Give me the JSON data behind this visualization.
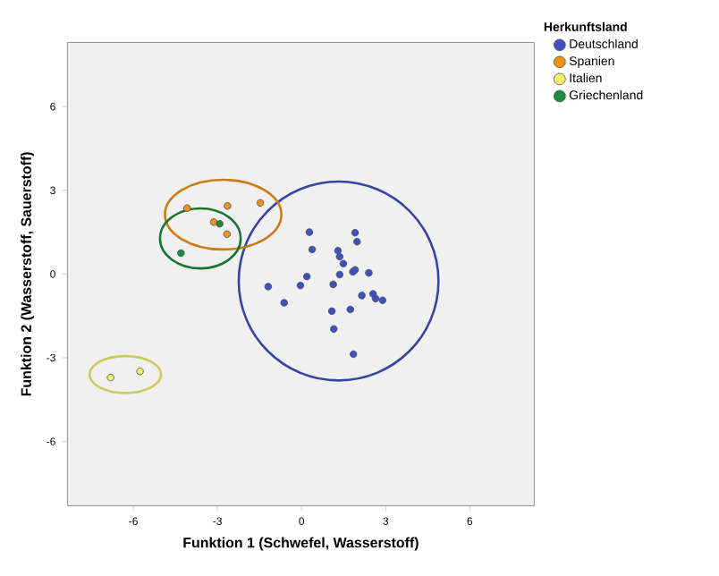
{
  "chart_data": {
    "type": "scatter",
    "xlabel": "Funktion 1 (Schwefel, Wasserstoff)",
    "ylabel": "Funktion 2 (Wasserstoff, Sauerstoff)",
    "legend_title": "Herkunftsland",
    "legend": "top right",
    "marker": "circle",
    "grid": false,
    "xlim": [
      -8.35,
      8.3
    ],
    "ylim": [
      -8.3,
      8.3
    ],
    "xticks": [
      -6,
      -3,
      0,
      3,
      6
    ],
    "yticks": [
      -6,
      -3,
      0,
      3,
      6
    ],
    "series": [
      {
        "name": "Deutschland",
        "color": "#3f51c0",
        "x": [
          0.28,
          1.91,
          1.98,
          0.38,
          1.3,
          1.36,
          1.49,
          -1.19,
          0.19,
          -0.04,
          -0.62,
          1.36,
          1.13,
          1.83,
          1.91,
          2.4,
          2.15,
          2.55,
          2.64,
          2.89,
          1.74,
          1.08,
          1.15,
          1.85
        ],
        "values": [
          1.5,
          1.48,
          1.16,
          0.88,
          0.84,
          0.62,
          0.37,
          -0.45,
          -0.09,
          -0.41,
          -1.03,
          -0.02,
          -0.37,
          0.08,
          0.15,
          0.04,
          -0.77,
          -0.71,
          -0.88,
          -0.94,
          -1.27,
          -1.33,
          -1.97,
          -2.87
        ]
      },
      {
        "name": "Spanien",
        "color": "#f0921a",
        "x": [
          -4.08,
          -2.64,
          -1.47,
          -3.13,
          -2.66
        ],
        "values": [
          2.36,
          2.44,
          2.55,
          1.86,
          1.43
        ]
      },
      {
        "name": "Italien",
        "color": "#f2ee6e",
        "x": [
          -6.81,
          -5.76
        ],
        "values": [
          -3.71,
          -3.49
        ]
      },
      {
        "name": "Griechenland",
        "color": "#1f8a3c",
        "x": [
          -4.3,
          -2.92
        ],
        "values": [
          0.75,
          1.8
        ]
      }
    ]
  }
}
